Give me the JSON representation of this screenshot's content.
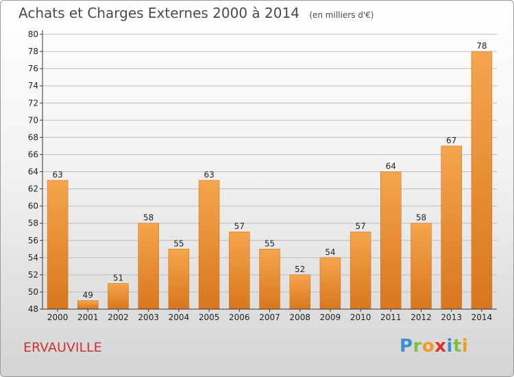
{
  "title": "Achats et Charges Externes 2000 à 2014",
  "unit_note": "(en milliers d'€)",
  "city": "ERVAUVILLE",
  "logo": {
    "text": "Proxiti",
    "letters": [
      {
        "ch": "P",
        "color": "#3b8fd4"
      },
      {
        "ch": "r",
        "color": "#7cc242"
      },
      {
        "ch": "o",
        "color": "#f29a25"
      },
      {
        "ch": "x",
        "color": "#d9312b"
      },
      {
        "ch": "i",
        "color": "#3b8fd4"
      },
      {
        "ch": "t",
        "color": "#7cc242"
      },
      {
        "ch": "i",
        "color": "#f29a25"
      }
    ]
  },
  "colors": {
    "bar_top": "#f5a54d",
    "bar_bottom": "#d8771d",
    "bar_edge": "#c96c18",
    "axis": "#333333",
    "grid": "#bdbdbd",
    "title": "#4a4a4a",
    "city": "#cc3333"
  },
  "chart_data": {
    "type": "bar",
    "categories": [
      "2000",
      "2001",
      "2002",
      "2003",
      "2004",
      "2005",
      "2006",
      "2007",
      "2008",
      "2009",
      "2010",
      "2011",
      "2012",
      "2013",
      "2014"
    ],
    "values": [
      63,
      49,
      51,
      58,
      55,
      63,
      57,
      55,
      52,
      54,
      57,
      64,
      58,
      67,
      78
    ],
    "ylim": [
      48,
      80
    ],
    "ytick_step": 2,
    "grid": true,
    "legend": "none",
    "data_labels": true
  }
}
